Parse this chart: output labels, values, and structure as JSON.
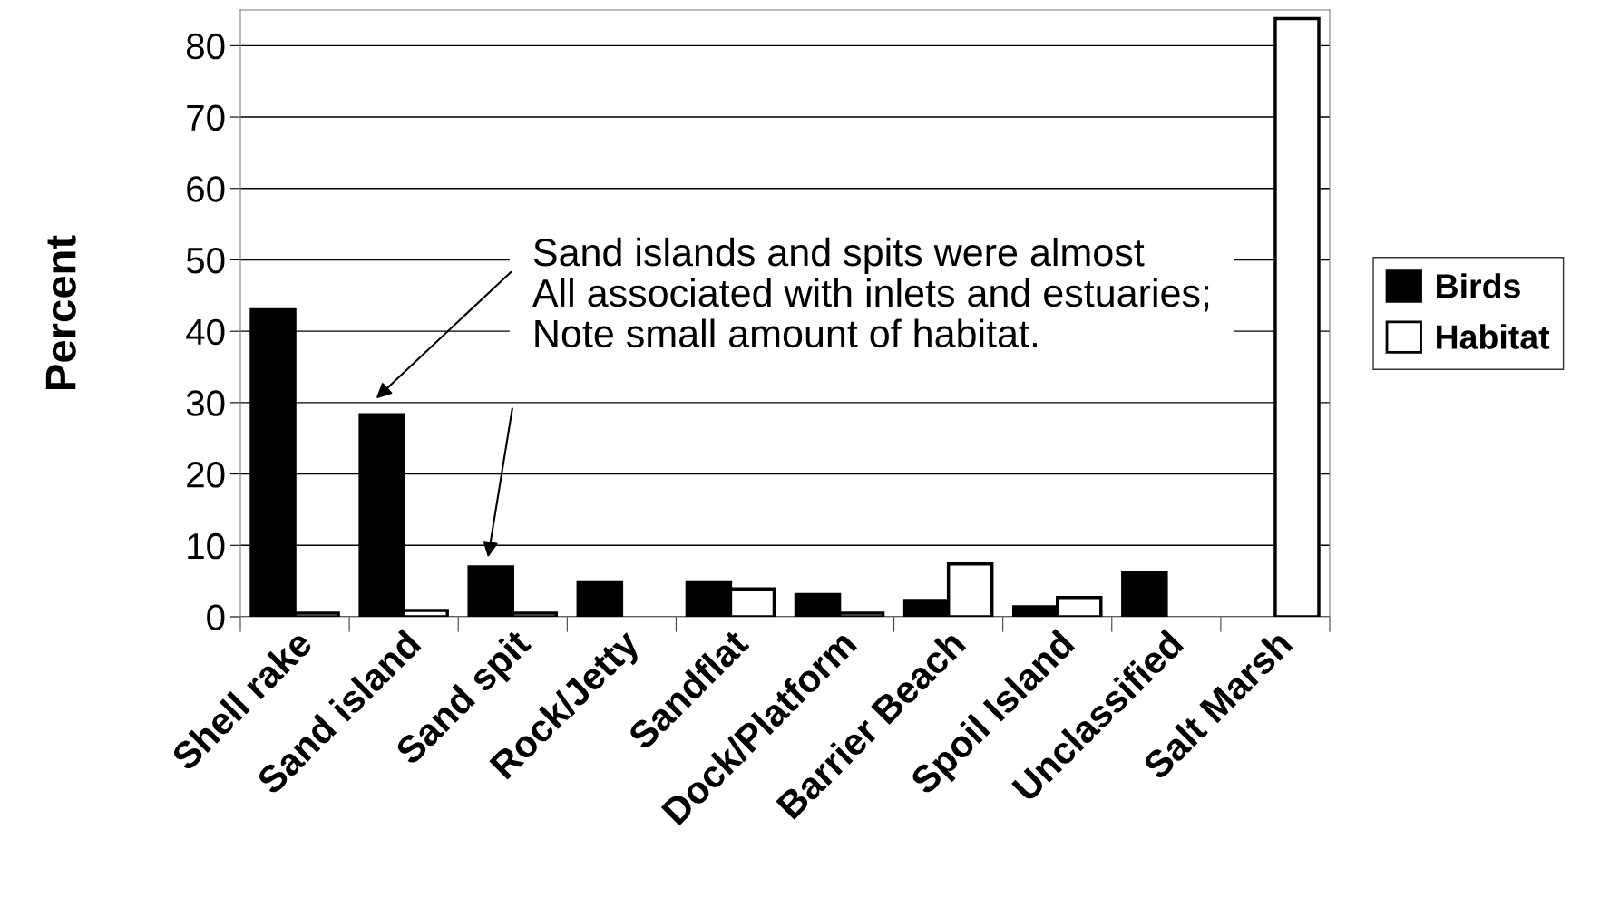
{
  "chart_data": {
    "type": "bar",
    "ylabel": "Percent",
    "categories": [
      "Shell rake",
      "Sand island",
      "Sand spit",
      "Rock/Jetty",
      "Sandflat",
      "Dock/Platform",
      "Barrier Beach",
      "Spoil Island",
      "Unclassified",
      "Salt Marsh"
    ],
    "series": [
      {
        "name": "Birds",
        "color": "#000000",
        "values": [
          43,
          28.3,
          7,
          4.9,
          4.9,
          3.1,
          2.3,
          1.4,
          6.2,
          null
        ]
      },
      {
        "name": "Habitat",
        "color": "#ffffff",
        "values": [
          0.5,
          0.9,
          0.5,
          null,
          3.9,
          0.5,
          7.4,
          2.7,
          null,
          83.8
        ]
      }
    ],
    "ylim": [
      0,
      85
    ],
    "yticks": [
      0,
      10,
      20,
      30,
      40,
      50,
      60,
      70,
      80
    ],
    "grid": "y",
    "legend": "right",
    "annotations": [
      "Sand islands and spits were almost\nAll associated with inlets and estuaries;\nNote small amount of habitat."
    ]
  }
}
